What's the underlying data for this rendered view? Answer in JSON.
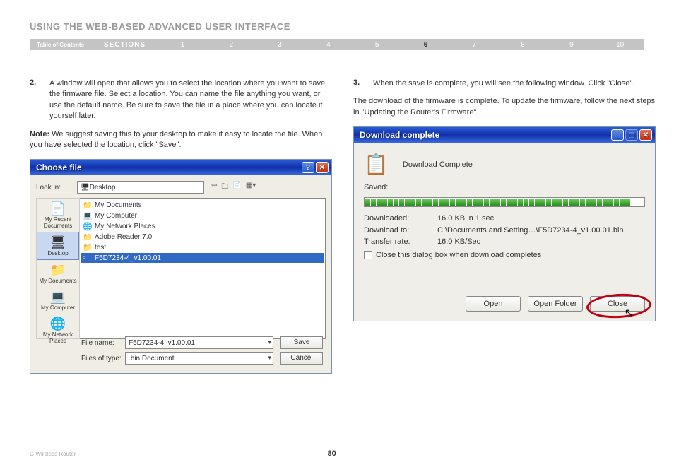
{
  "page": {
    "title": "USING THE WEB-BASED ADVANCED USER INTERFACE",
    "toc_label": "Table of Contents",
    "sections_label": "SECTIONS",
    "section_numbers": [
      "1",
      "2",
      "3",
      "4",
      "5",
      "6",
      "7",
      "8",
      "9",
      "10"
    ],
    "active_section": "6",
    "footer_left": "G Wireless Router",
    "page_number": "80"
  },
  "left": {
    "step_num": "2.",
    "step_text": "A window will open that allows you to select the location where you want to save the firmware file. Select a location. You can name the file anything you want, or use the default name. Be sure to save the file in a place where you can locate it yourself later.",
    "note_label": "Note:",
    "note_text": " We suggest saving this to your desktop to make it easy to locate the file. When you have selected the location, click \"Save\"."
  },
  "right": {
    "step_num": "3.",
    "step_text": "When the save is complete, you will see the following window. Click \"Close\".",
    "para": "The download of the firmware is complete. To update the firmware, follow the next steps in \"Updating the Router's Firmware\"."
  },
  "choosefile": {
    "title": "Choose file",
    "lookin_label": "Look in:",
    "lookin_value": "Desktop",
    "toolbar_icons": [
      "⇦",
      "🗀",
      "📄",
      "▦▾"
    ],
    "places": [
      {
        "icon": "📄",
        "label": "My Recent Documents"
      },
      {
        "icon": "🖥",
        "label": "Desktop"
      },
      {
        "icon": "📁",
        "label": "My Documents"
      },
      {
        "icon": "💻",
        "label": "My Computer"
      },
      {
        "icon": "🌐",
        "label": "My Network Places"
      }
    ],
    "selected_place": 1,
    "files": [
      {
        "icon": "📁",
        "name": "My Documents"
      },
      {
        "icon": "💻",
        "name": "My Computer"
      },
      {
        "icon": "🌐",
        "name": "My Network Places"
      },
      {
        "icon": "📁",
        "name": "Adobe Reader 7.0"
      },
      {
        "icon": "📁",
        "name": "test"
      },
      {
        "icon": "▫",
        "name": "F5D7234-4_v1.00.01"
      }
    ],
    "selected_file": 5,
    "filename_label": "File name:",
    "filename_value": "F5D7234-4_v1.00.01",
    "filetype_label": "Files of type:",
    "filetype_value": ".bin Document",
    "save_btn": "Save",
    "cancel_btn": "Cancel"
  },
  "download": {
    "title": "Download complete",
    "header_text": "Download Complete",
    "saved_label": "Saved:",
    "progress_blocks": 47,
    "rows": {
      "downloaded_label": "Downloaded:",
      "downloaded_value": "16.0 KB in 1 sec",
      "downloadto_label": "Download to:",
      "downloadto_value": "C:\\Documents and Setting…\\F5D7234-4_v1.00.01.bin",
      "rate_label": "Transfer rate:",
      "rate_value": "16.0 KB/Sec"
    },
    "checkbox_label": "Close this dialog box when download completes",
    "open_btn": "Open",
    "openfolder_btn": "Open Folder",
    "close_btn": "Close"
  },
  "colors": {
    "titlebar_blue": "#2a5cd8",
    "close_red": "#c03010",
    "circle_red": "#c00010",
    "progress_green": "#2a9020",
    "section_gray": "#c4c4c4"
  }
}
